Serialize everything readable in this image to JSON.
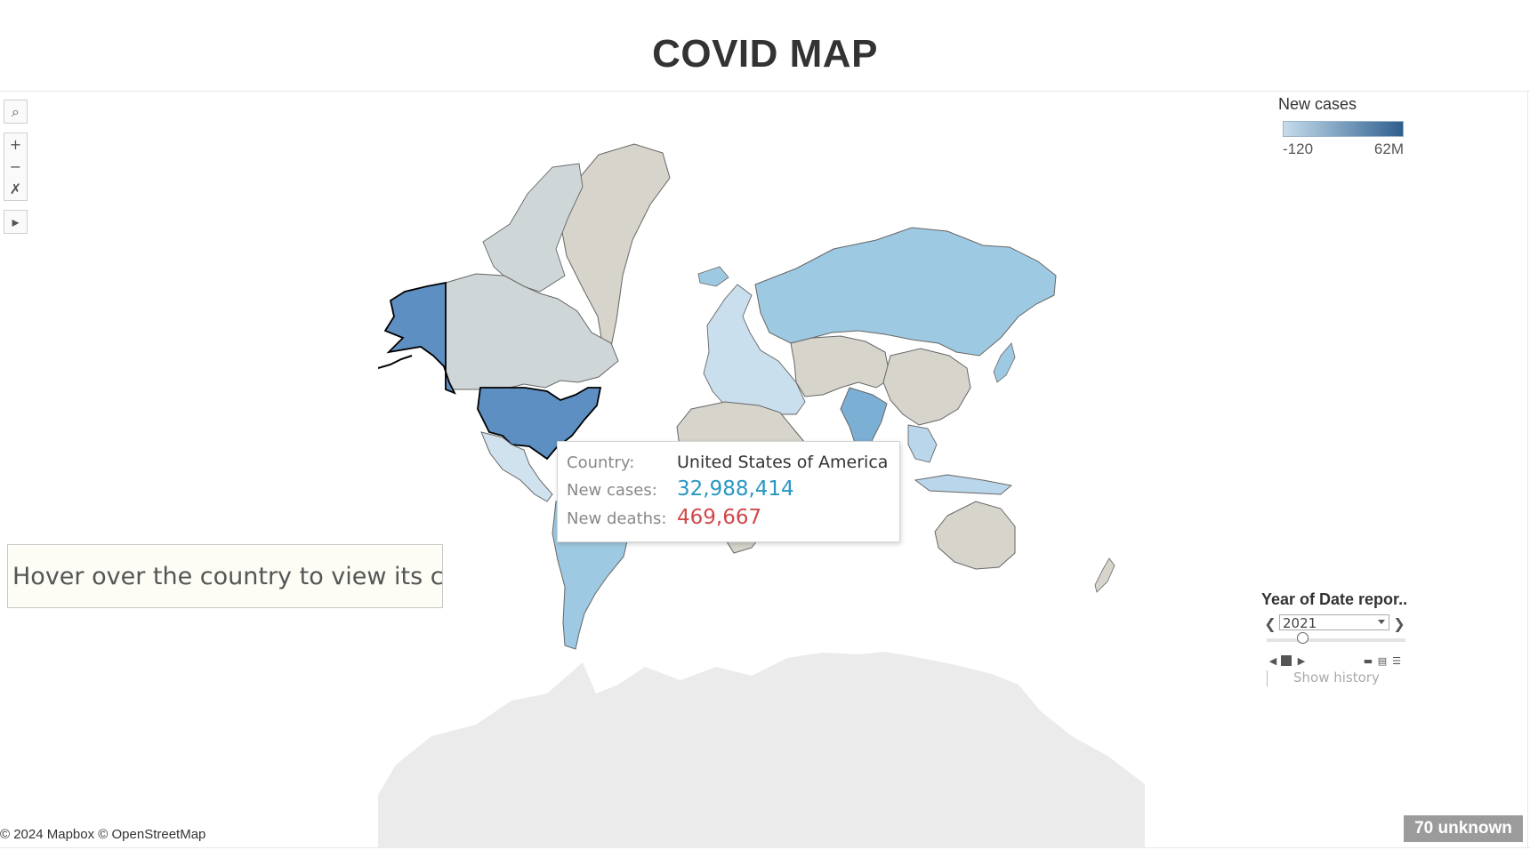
{
  "title": "COVID MAP",
  "map_data": {
    "measure": "New cases",
    "legend": {
      "title": "New cases",
      "min_label": "-120",
      "max_label": "62M",
      "gradient_start": "#c5dcec",
      "gradient_end": "#2f5f8f"
    },
    "colors": {
      "unknown_land": "#d6d4cb",
      "no_data_land": "#cfd6d8",
      "light_blue": "#9ec9e2",
      "mid_blue": "#7bafd4",
      "dark_blue": "#5d8fc2",
      "water": "#ffffff",
      "antarctica": "#ebebeb",
      "outline": "#666666"
    },
    "highlighted_country": "United States of America",
    "regions": [
      {
        "name": "United States of America",
        "shade": "dark_blue",
        "selected": true
      },
      {
        "name": "Alaska",
        "shade": "dark_blue"
      },
      {
        "name": "Canada",
        "shade": "no_data_land"
      },
      {
        "name": "Greenland",
        "shade": "unknown_land"
      },
      {
        "name": "Russia",
        "shade": "light_blue"
      },
      {
        "name": "China",
        "shade": "unknown_land"
      },
      {
        "name": "India",
        "shade": "mid_blue"
      },
      {
        "name": "Brazil",
        "shade": "light_blue"
      },
      {
        "name": "Australia",
        "shade": "unknown_land"
      }
    ]
  },
  "tooltip": {
    "country_label": "Country:",
    "country_value": "United States of America",
    "cases_label": "New cases:",
    "cases_value": "32,988,414",
    "cases_color": "#2a96c2",
    "deaths_label": "New deaths:",
    "deaths_value": "469,667",
    "deaths_color": "#d1484a"
  },
  "hover_hint": "Hover over the country to view its c..",
  "toolbar": {
    "search_icon": "⌕",
    "zoom_in": "+",
    "zoom_out": "−",
    "pan_icon": "✗",
    "expand_icon": "▸"
  },
  "year_filter": {
    "title": "Year of Date repor..",
    "selected": "2021",
    "show_history": "Show history"
  },
  "attribution": "© 2024 Mapbox © OpenStreetMap",
  "unknown_badge": "70 unknown"
}
